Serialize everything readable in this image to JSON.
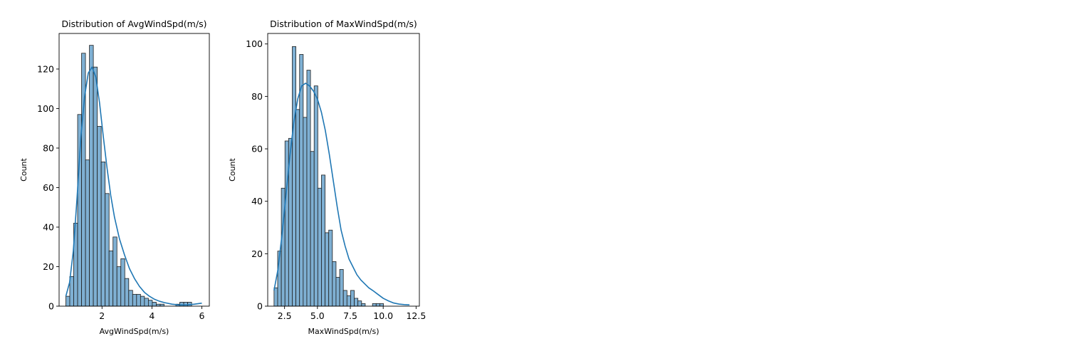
{
  "colors": {
    "bar_fill": "#7fb0d3",
    "bar_edge": "#1f1f1f",
    "kde_line": "#1f77b4",
    "axes": "#000000"
  },
  "chart_data": [
    {
      "type": "bar",
      "title": "Distribution of AvgWindSpd(m/s)",
      "xlabel": "AvgWindSpd(m/s)",
      "ylabel": "Count",
      "xlim": [
        0.28,
        6.3
      ],
      "ylim": [
        0,
        138
      ],
      "xticks": [
        2,
        4,
        6
      ],
      "xtick_labels": [
        "2",
        "4",
        "6"
      ],
      "yticks": [
        0,
        20,
        40,
        60,
        80,
        100,
        120
      ],
      "ytick_labels": [
        "0",
        "20",
        "40",
        "60",
        "80",
        "100",
        "120"
      ],
      "bin_start": 0.55,
      "bin_width": 0.1575,
      "values": [
        5,
        15,
        42,
        97,
        128,
        74,
        132,
        121,
        91,
        73,
        57,
        28,
        35,
        20,
        24,
        14,
        8,
        6,
        6,
        5,
        4,
        3,
        2,
        1,
        1,
        0,
        0,
        0,
        1,
        2,
        2,
        2
      ],
      "kde": {
        "x": [
          0.55,
          0.7,
          0.85,
          1.0,
          1.15,
          1.3,
          1.45,
          1.6,
          1.75,
          1.9,
          2.05,
          2.2,
          2.35,
          2.5,
          2.7,
          2.9,
          3.1,
          3.3,
          3.5,
          3.7,
          3.9,
          4.1,
          4.3,
          4.5,
          4.8,
          5.1,
          5.4,
          5.7,
          6.0
        ],
        "y": [
          5,
          12,
          28,
          55,
          85,
          106,
          118,
          121,
          116,
          103,
          86,
          70,
          56,
          45,
          34,
          26,
          19,
          14,
          10,
          7,
          5,
          3.5,
          2.5,
          1.8,
          1,
          0.6,
          0.6,
          1,
          1.5
        ]
      },
      "grid": false
    },
    {
      "type": "bar",
      "title": "Distribution of MaxWindSpd(m/s)",
      "xlabel": "MaxWindSpd(m/s)",
      "ylabel": "Count",
      "xlim": [
        1.22,
        12.75
      ],
      "ylim": [
        0,
        104
      ],
      "xticks": [
        2.5,
        5.0,
        7.5,
        10.0,
        12.5
      ],
      "xtick_labels": [
        "2.5",
        "5.0",
        "7.5",
        "10.0",
        "12.5"
      ],
      "yticks": [
        0,
        20,
        40,
        60,
        80,
        100
      ],
      "ytick_labels": [
        "0",
        "20",
        "40",
        "60",
        "80",
        "100"
      ],
      "bin_start": 1.7,
      "bin_width": 0.2773,
      "values": [
        7,
        21,
        45,
        63,
        64,
        99,
        75,
        96,
        72,
        90,
        59,
        84,
        45,
        50,
        28,
        29,
        17,
        11,
        14,
        6,
        4,
        6,
        3,
        2,
        1,
        0,
        0,
        1,
        1,
        1
      ],
      "kde": {
        "x": [
          1.7,
          2.0,
          2.3,
          2.6,
          2.9,
          3.2,
          3.5,
          3.8,
          4.1,
          4.4,
          4.7,
          5.0,
          5.3,
          5.6,
          5.9,
          6.2,
          6.5,
          6.8,
          7.1,
          7.4,
          7.7,
          8.0,
          8.3,
          8.6,
          8.9,
          9.2,
          9.6,
          10.0,
          10.4,
          10.8,
          11.2,
          11.6,
          12.0
        ],
        "y": [
          6,
          14,
          27,
          42,
          57,
          70,
          79,
          84,
          85,
          84,
          82,
          79,
          74,
          67,
          58,
          48,
          38,
          29,
          23,
          18,
          15,
          12,
          10,
          8.5,
          7,
          6,
          4.5,
          3,
          2,
          1.2,
          0.8,
          0.6,
          0.5
        ]
      },
      "grid": false
    }
  ]
}
